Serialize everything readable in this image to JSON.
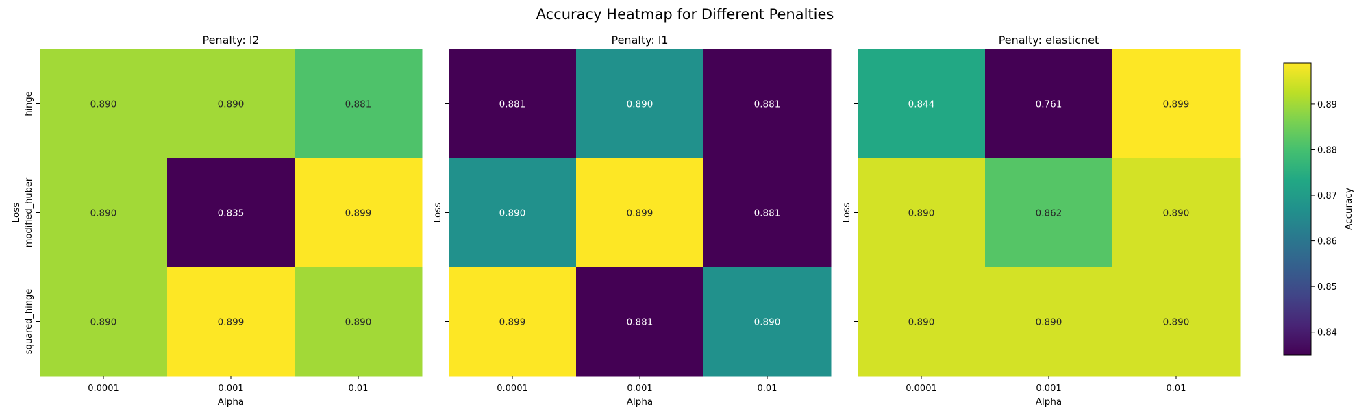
{
  "chart_data": {
    "type": "heatmap",
    "title": "Accuracy Heatmap for Different Penalties",
    "xlabel": "Alpha",
    "ylabel": "Loss",
    "x_categories": [
      "0.0001",
      "0.001",
      "0.01"
    ],
    "y_categories": [
      "hinge",
      "modified_huber",
      "squared_hinge"
    ],
    "colormap": "viridis",
    "value_format": "0.000",
    "colorbar": {
      "label": "Accuracy",
      "ticks": [
        "0.84",
        "0.85",
        "0.86",
        "0.87",
        "0.88",
        "0.89"
      ],
      "range": [
        0.835,
        0.899
      ]
    },
    "panels": [
      {
        "title": "Penalty: l2",
        "values": [
          [
            0.89,
            0.89,
            0.881
          ],
          [
            0.89,
            0.835,
            0.899
          ],
          [
            0.89,
            0.899,
            0.89
          ]
        ]
      },
      {
        "title": "Penalty: l1",
        "values": [
          [
            0.881,
            0.89,
            0.881
          ],
          [
            0.89,
            0.899,
            0.881
          ],
          [
            0.899,
            0.881,
            0.89
          ]
        ]
      },
      {
        "title": "Penalty: elasticnet",
        "values": [
          [
            0.844,
            0.761,
            0.899
          ],
          [
            0.89,
            0.862,
            0.89
          ],
          [
            0.89,
            0.89,
            0.89
          ]
        ]
      }
    ]
  }
}
